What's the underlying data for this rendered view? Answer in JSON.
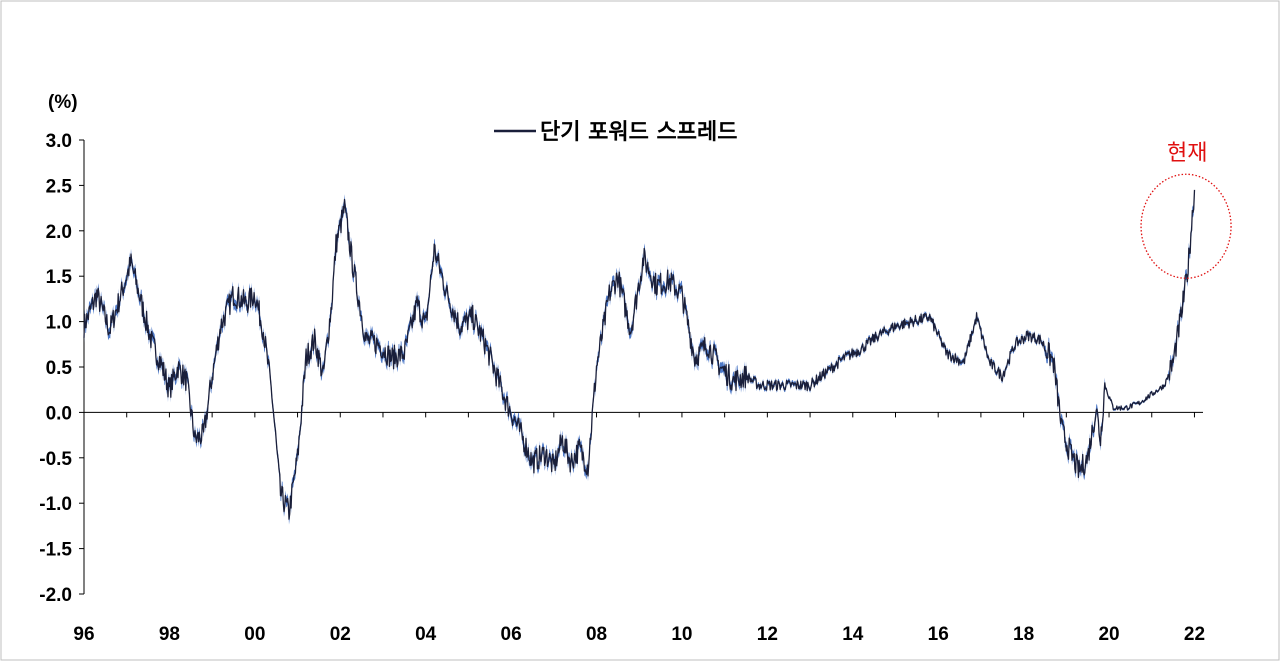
{
  "chart_data": {
    "type": "line",
    "title": "",
    "ylabel": "(%)",
    "xlabel": "",
    "ylim": [
      -2.0,
      3.0
    ],
    "xlim": [
      1996,
      2022.2
    ],
    "y_ticks": [
      "3.0",
      "2.5",
      "2.0",
      "1.5",
      "1.0",
      "0.5",
      "0.0",
      "-0.5",
      "-1.0",
      "-1.5",
      "-2.0"
    ],
    "y_tick_values": [
      3.0,
      2.5,
      2.0,
      1.5,
      1.0,
      0.5,
      0.0,
      -0.5,
      -1.0,
      -1.5,
      -2.0
    ],
    "x_ticks": [
      "96",
      "98",
      "00",
      "02",
      "04",
      "06",
      "08",
      "10",
      "12",
      "14",
      "16",
      "18",
      "20",
      "22"
    ],
    "x_tick_values": [
      1996,
      1998,
      2000,
      2002,
      2004,
      2006,
      2008,
      2010,
      2012,
      2014,
      2016,
      2018,
      2020,
      2022
    ],
    "grid": false,
    "legend_position": "top-center",
    "colors": {
      "line": "#1a1f3a",
      "fill": "#4472c4",
      "annotation": "#e01010"
    },
    "series": [
      {
        "name": "단기 포워드 스프레드",
        "x": [
          1996.0,
          1996.3,
          1996.6,
          1996.9,
          1997.1,
          1997.4,
          1997.6,
          1997.8,
          1998.0,
          1998.2,
          1998.4,
          1998.6,
          1998.8,
          1999.0,
          1999.2,
          1999.5,
          1999.8,
          2000.0,
          2000.2,
          2000.4,
          2000.6,
          2000.8,
          2001.0,
          2001.2,
          2001.4,
          2001.6,
          2001.8,
          2001.9,
          2002.1,
          2002.3,
          2002.6,
          2002.9,
          2003.2,
          2003.5,
          2003.8,
          2004.0,
          2004.2,
          2004.5,
          2004.8,
          2005.1,
          2005.4,
          2005.7,
          2005.9,
          2006.2,
          2006.5,
          2006.8,
          2007.0,
          2007.2,
          2007.4,
          2007.6,
          2007.8,
          2008.0,
          2008.3,
          2008.5,
          2008.8,
          2009.1,
          2009.4,
          2009.7,
          2010.0,
          2010.3,
          2010.6,
          2010.9,
          2011.2,
          2011.5,
          2011.8,
          2012.2,
          2012.6,
          2013.0,
          2013.4,
          2013.8,
          2014.2,
          2014.6,
          2015.0,
          2015.4,
          2015.8,
          2016.2,
          2016.6,
          2016.9,
          2017.2,
          2017.5,
          2017.8,
          2018.1,
          2018.4,
          2018.7,
          2018.9,
          2019.1,
          2019.3,
          2019.5,
          2019.7,
          2019.8,
          2019.9,
          2020.1,
          2020.4,
          2020.7,
          2021.0,
          2021.3,
          2021.5,
          2021.7,
          2021.85,
          2022.0
        ],
        "values": [
          0.95,
          1.3,
          0.9,
          1.35,
          1.65,
          1.1,
          0.75,
          0.55,
          0.25,
          0.5,
          0.35,
          -0.3,
          -0.25,
          0.4,
          0.95,
          1.3,
          1.2,
          1.3,
          0.9,
          0.2,
          -0.9,
          -1.1,
          -0.5,
          0.6,
          0.8,
          0.4,
          1.2,
          1.85,
          2.25,
          1.6,
          0.8,
          0.75,
          0.6,
          0.65,
          1.2,
          0.95,
          1.8,
          1.3,
          0.95,
          1.05,
          0.75,
          0.35,
          0.1,
          -0.2,
          -0.55,
          -0.45,
          -0.6,
          -0.3,
          -0.55,
          -0.4,
          -0.6,
          0.5,
          1.3,
          1.5,
          0.9,
          1.7,
          1.4,
          1.45,
          1.3,
          0.6,
          0.75,
          0.5,
          0.35,
          0.4,
          0.3,
          0.3,
          0.3,
          0.3,
          0.45,
          0.6,
          0.7,
          0.85,
          0.95,
          1.0,
          1.05,
          0.65,
          0.55,
          1.05,
          0.55,
          0.4,
          0.75,
          0.85,
          0.8,
          0.55,
          -0.2,
          -0.45,
          -0.65,
          -0.5,
          0.05,
          -0.3,
          0.3,
          0.05,
          0.05,
          0.1,
          0.2,
          0.3,
          0.55,
          1.1,
          1.6,
          2.45
        ]
      }
    ],
    "annotations": [
      {
        "text": "현재",
        "x": 2021.85,
        "y": 2.05
      }
    ]
  }
}
